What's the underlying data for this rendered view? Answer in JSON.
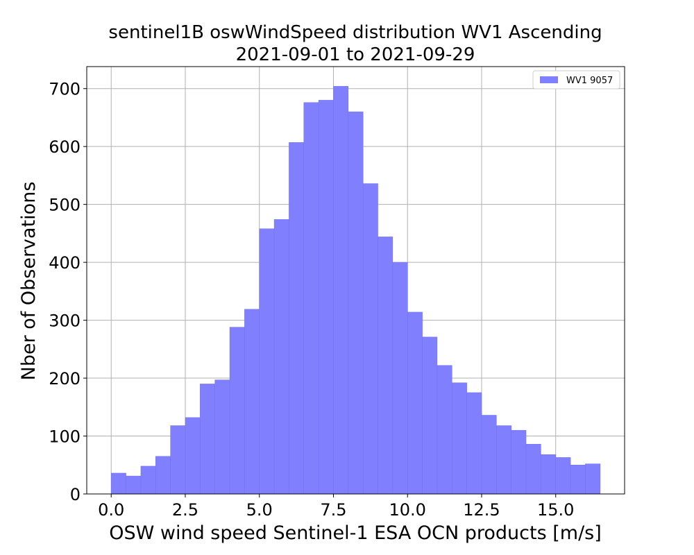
{
  "chart_data": {
    "type": "bar",
    "title": "sentinel1B oswWindSpeed distribution WV1 Ascending",
    "subtitle": "2021-09-01 to 2021-09-29",
    "xlabel": "OSW wind speed Sentinel-1 ESA OCN products [m/s]",
    "ylabel": "Nber of Observations",
    "xlim": [
      -0.825,
      17.325
    ],
    "ylim": [
      0,
      738
    ],
    "xticks": [
      0.0,
      2.5,
      5.0,
      7.5,
      10.0,
      12.5,
      15.0
    ],
    "xtick_labels": [
      "0.0",
      "2.5",
      "5.0",
      "7.5",
      "10.0",
      "12.5",
      "15.0"
    ],
    "yticks": [
      0,
      100,
      200,
      300,
      400,
      500,
      600,
      700
    ],
    "ytick_labels": [
      "0",
      "100",
      "200",
      "300",
      "400",
      "500",
      "600",
      "700"
    ],
    "bin_width": 0.5,
    "bin_starts": [
      0.0,
      0.5,
      1.0,
      1.5,
      2.0,
      2.5,
      3.0,
      3.5,
      4.0,
      4.5,
      5.0,
      5.5,
      6.0,
      6.5,
      7.0,
      7.5,
      8.0,
      8.5,
      9.0,
      9.5,
      10.0,
      10.5,
      11.0,
      11.5,
      12.0,
      12.5,
      13.0,
      13.5,
      14.0,
      14.5,
      15.0,
      15.5,
      16.0
    ],
    "series": [
      {
        "name": "WV1 9057",
        "color": "#8080ff",
        "values": [
          36,
          31,
          48,
          65,
          118,
          132,
          190,
          197,
          288,
          319,
          458,
          474,
          607,
          676,
          680,
          704,
          660,
          536,
          444,
          400,
          314,
          271,
          222,
          192,
          175,
          136,
          118,
          110,
          86,
          68,
          63,
          50,
          52
        ]
      }
    ],
    "grid": true,
    "legend_position": "top-right"
  }
}
